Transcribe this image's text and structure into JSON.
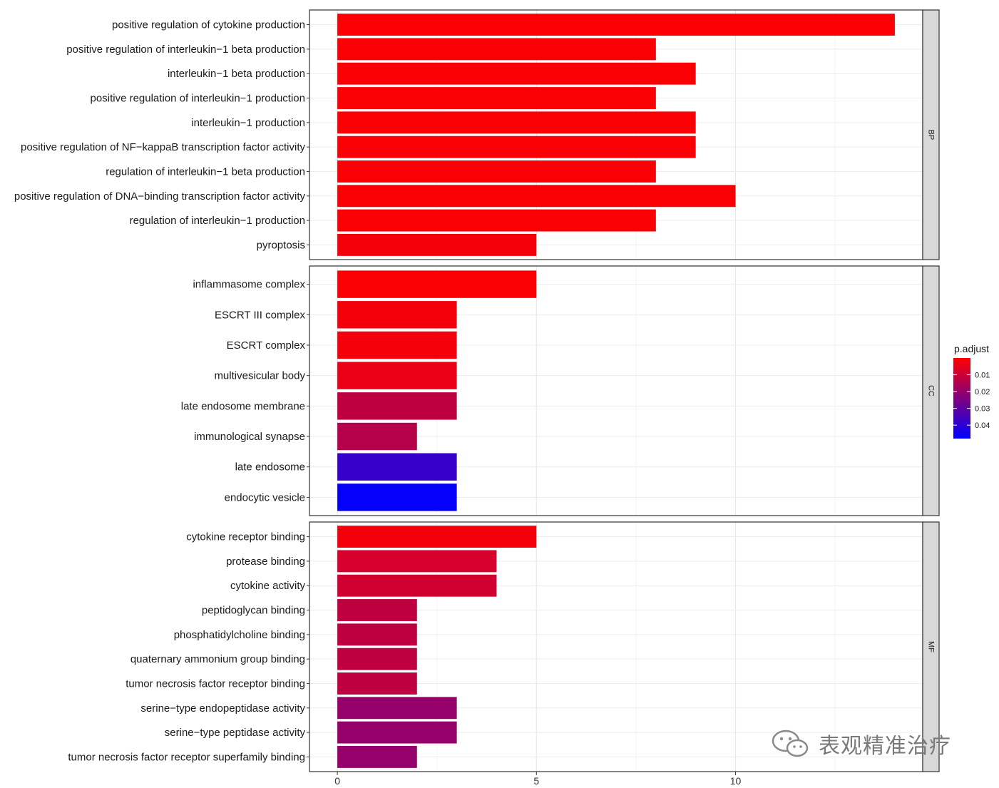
{
  "chart_data": {
    "type": "bar",
    "orientation": "horizontal",
    "x_axis": {
      "ticks": [
        0,
        5,
        10
      ],
      "range": [
        -0.7,
        14.7
      ]
    },
    "grid": true,
    "facets": [
      {
        "label": "BP",
        "categories": [
          "positive regulation of cytokine production",
          "positive regulation of interleukin−1 beta production",
          "interleukin−1 beta production",
          "positive regulation of interleukin−1 production",
          "interleukin−1 production",
          "positive regulation of NF−kappaB transcription factor activity",
          "regulation of interleukin−1 beta production",
          "positive regulation of DNA−binding transcription factor activity",
          "regulation of interleukin−1 production",
          "pyroptosis"
        ],
        "values": [
          14,
          8,
          9,
          8,
          9,
          9,
          8,
          10,
          8,
          5
        ],
        "p_adjust": [
          0.0005,
          0.001,
          0.001,
          0.001,
          0.001,
          0.001,
          0.001,
          0.001,
          0.001,
          0.002
        ]
      },
      {
        "label": "CC",
        "categories": [
          "inflammasome complex",
          "ESCRT III complex",
          "ESCRT complex",
          "multivesicular body",
          "late endosome membrane",
          "immunological synapse",
          "late endosome",
          "endocytic vesicle"
        ],
        "values": [
          5,
          3,
          3,
          3,
          3,
          2,
          3,
          3
        ],
        "p_adjust": [
          0.001,
          0.002,
          0.002,
          0.004,
          0.012,
          0.014,
          0.038,
          0.047
        ]
      },
      {
        "label": "MF",
        "categories": [
          "cytokine receptor binding",
          "protease binding",
          "cytokine activity",
          "peptidoglycan binding",
          "phosphatidylcholine binding",
          "quaternary ammonium group binding",
          "tumor necrosis factor receptor binding",
          "serine−type endopeptidase activity",
          "serine−type peptidase activity",
          "tumor necrosis factor receptor superfamily binding"
        ],
        "values": [
          5,
          4,
          4,
          2,
          2,
          2,
          2,
          3,
          3,
          2
        ],
        "p_adjust": [
          0.002,
          0.008,
          0.009,
          0.012,
          0.012,
          0.012,
          0.012,
          0.02,
          0.02,
          0.02
        ]
      }
    ],
    "legend": {
      "title": "p.adjust",
      "ticks": [
        "0.01",
        "0.02",
        "0.03",
        "0.04"
      ],
      "tick_values": [
        0.01,
        0.02,
        0.03,
        0.04
      ],
      "range": [
        0,
        0.048
      ],
      "color_low": "#ff0000",
      "color_high": "#0000ff",
      "placement": "right"
    }
  },
  "watermark": {
    "text": "表观精准治疗",
    "icon": "wechat-icon"
  }
}
